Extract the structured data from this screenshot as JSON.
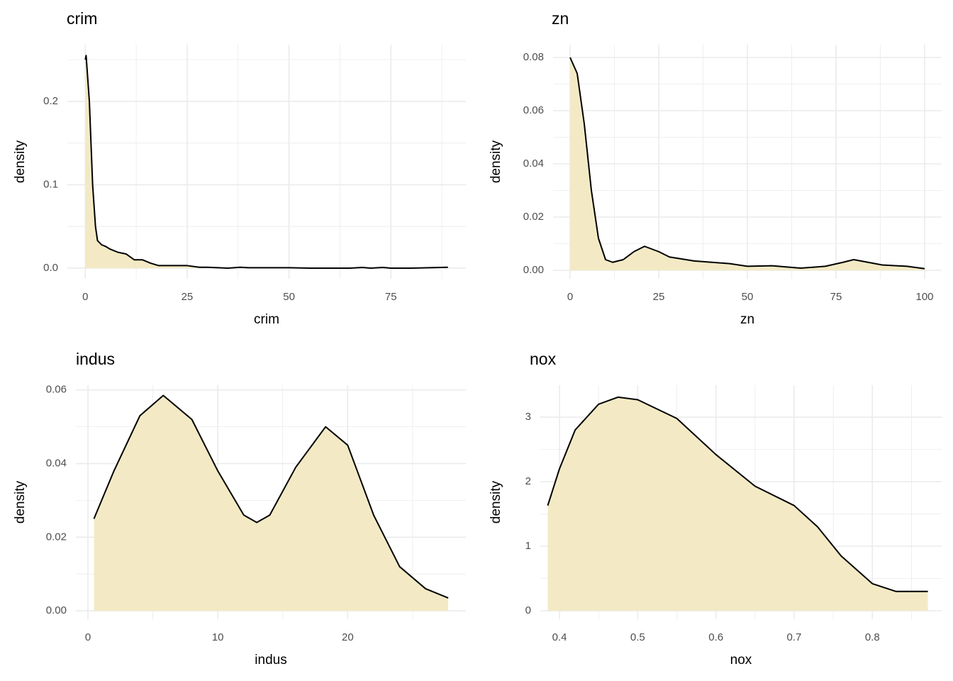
{
  "chart_data": [
    {
      "type": "area",
      "title": "crim",
      "xlabel": "crim",
      "ylabel": "density",
      "x": [
        0.006,
        0.2,
        1,
        1.8,
        2.5,
        3,
        4,
        5,
        6,
        8,
        10,
        12,
        14,
        16,
        18,
        20,
        25,
        28,
        30,
        35,
        38,
        40,
        45,
        50,
        55,
        60,
        65,
        68,
        70,
        73,
        75,
        80,
        89
      ],
      "values": [
        0.25,
        0.255,
        0.2,
        0.1,
        0.05,
        0.033,
        0.028,
        0.026,
        0.023,
        0.019,
        0.017,
        0.01,
        0.01,
        0.006,
        0.003,
        0.003,
        0.003,
        0.001,
        0.001,
        0.0,
        0.001,
        0.0005,
        0.0005,
        0.0005,
        0.0,
        0.0,
        0.0,
        0.0008,
        0.0,
        0.0008,
        0.0,
        0.0,
        0.001
      ],
      "xlim": [
        -4.4,
        93.4
      ],
      "ylim": [
        -0.0128,
        0.268
      ],
      "xticks": [
        0,
        25,
        50,
        75
      ],
      "yticks": [
        {
          "value": 0,
          "label": "0.0"
        },
        {
          "value": 0.1,
          "label": "0.1"
        },
        {
          "value": 0.2,
          "label": "0.2"
        }
      ],
      "color": "#f2e9c2",
      "line_color": "#000000",
      "grid": true
    },
    {
      "type": "area",
      "title": "zn",
      "xlabel": "zn",
      "ylabel": "density",
      "x": [
        0,
        2,
        4,
        6,
        8,
        10,
        12,
        15,
        18,
        21,
        25,
        28,
        35,
        45,
        50,
        57,
        65,
        72,
        77,
        80,
        84,
        88,
        95,
        100
      ],
      "values": [
        0.08,
        0.074,
        0.055,
        0.03,
        0.012,
        0.004,
        0.003,
        0.004,
        0.007,
        0.009,
        0.007,
        0.005,
        0.0035,
        0.0025,
        0.0015,
        0.0017,
        0.0008,
        0.0015,
        0.003,
        0.004,
        0.003,
        0.002,
        0.0015,
        0.0006
      ],
      "xlim": [
        -4.8,
        104.8
      ],
      "ylim": [
        -0.0032,
        0.0848
      ],
      "xticks": [
        0,
        25,
        50,
        75,
        100
      ],
      "yticks": [
        {
          "value": 0,
          "label": "0.00"
        },
        {
          "value": 0.02,
          "label": "0.02"
        },
        {
          "value": 0.04,
          "label": "0.04"
        },
        {
          "value": 0.06,
          "label": "0.06"
        },
        {
          "value": 0.08,
          "label": "0.08"
        }
      ],
      "color": "#f2e9c2",
      "line_color": "#000000",
      "grid": true
    },
    {
      "type": "area",
      "title": "indus",
      "xlabel": "indus",
      "ylabel": "density",
      "x": [
        0.46,
        2,
        4,
        5.8,
        8,
        10,
        12,
        13,
        14,
        16,
        18.3,
        20,
        22,
        24,
        26,
        27.74
      ],
      "values": [
        0.025,
        0.038,
        0.053,
        0.0585,
        0.052,
        0.038,
        0.026,
        0.024,
        0.026,
        0.039,
        0.05,
        0.045,
        0.026,
        0.012,
        0.006,
        0.0035
      ],
      "xlim": [
        -0.93,
        29.1
      ],
      "ylim": [
        -0.0023,
        0.0613
      ],
      "xticks": [
        0,
        10,
        20
      ],
      "yticks": [
        {
          "value": 0,
          "label": "0.00"
        },
        {
          "value": 0.02,
          "label": "0.02"
        },
        {
          "value": 0.04,
          "label": "0.04"
        },
        {
          "value": 0.06,
          "label": "0.06"
        }
      ],
      "color": "#f2e9c2",
      "line_color": "#000000",
      "grid": true
    },
    {
      "type": "area",
      "title": "nox",
      "xlabel": "nox",
      "ylabel": "density",
      "x": [
        0.385,
        0.4,
        0.42,
        0.45,
        0.475,
        0.5,
        0.55,
        0.6,
        0.65,
        0.7,
        0.73,
        0.76,
        0.8,
        0.83,
        0.871
      ],
      "values": [
        1.63,
        2.2,
        2.8,
        3.2,
        3.31,
        3.27,
        2.98,
        2.42,
        1.93,
        1.63,
        1.3,
        0.85,
        0.42,
        0.3,
        0.3
      ],
      "xlim": [
        0.3755,
        0.8886
      ],
      "ylim": [
        -0.132,
        3.495
      ],
      "xticks": [
        0.4,
        0.5,
        0.6,
        0.7,
        0.8
      ],
      "yticks": [
        0,
        1,
        2,
        3
      ],
      "color": "#f2e9c2",
      "line_color": "#000000",
      "grid": true
    }
  ]
}
